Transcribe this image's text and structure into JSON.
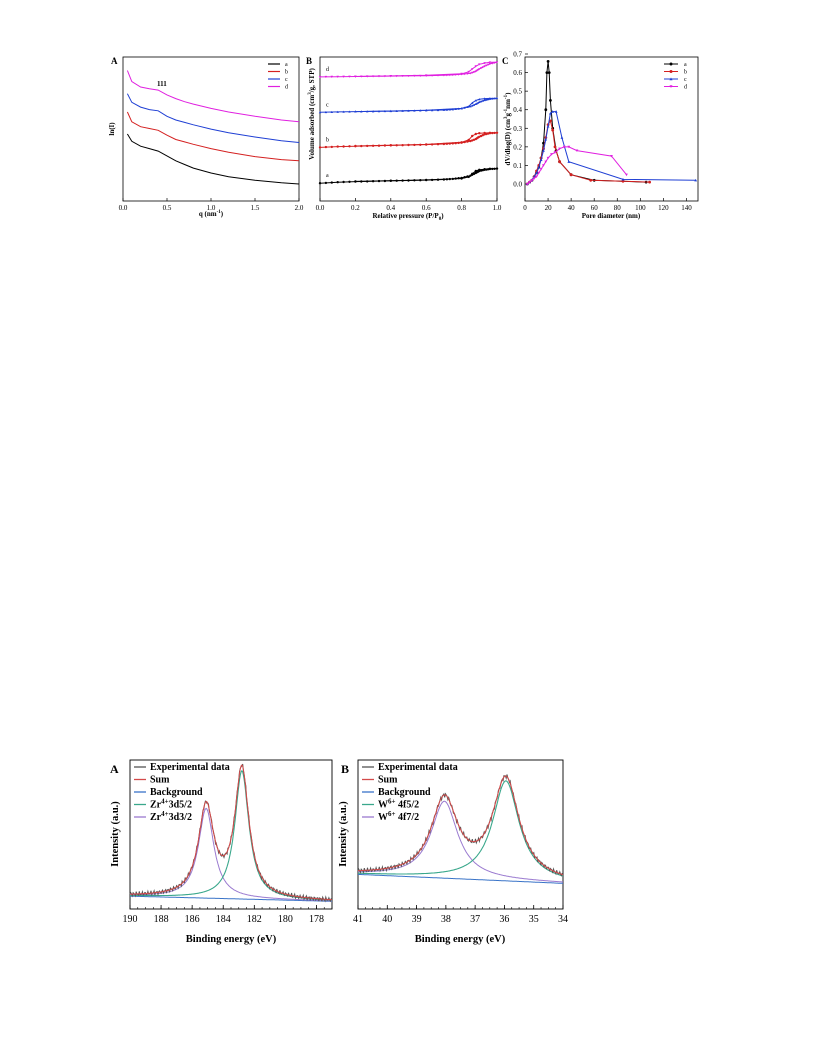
{
  "colors": {
    "a": "#000000",
    "b": "#d42020",
    "c": "#1f3fd4",
    "d": "#e020e0"
  },
  "chart_data": [
    {
      "panel": "A",
      "type": "line",
      "xlabel": "q (nm",
      "xlabel_sup": "-1",
      "xlabel_end": ")",
      "ylabel": "ln(I)",
      "xlim": [
        0,
        2.0
      ],
      "xticks": [
        "0.0",
        "0.5",
        "1.0",
        "1.5",
        "2.0"
      ],
      "annotation": "111",
      "series": [
        {
          "name": "a",
          "x": [
            0.05,
            0.1,
            0.2,
            0.3,
            0.4,
            0.5,
            0.6,
            0.7,
            0.8,
            1.0,
            1.2,
            1.5,
            1.8,
            2.0
          ],
          "y": [
            4.1,
            3.5,
            3.1,
            2.9,
            2.7,
            2.3,
            1.9,
            1.6,
            1.3,
            0.9,
            0.6,
            0.3,
            0.1,
            0.0
          ]
        },
        {
          "name": "b",
          "x": [
            0.05,
            0.1,
            0.2,
            0.3,
            0.4,
            0.5,
            0.6,
            0.7,
            0.8,
            1.0,
            1.2,
            1.5,
            1.8,
            2.0
          ],
          "y": [
            5.9,
            5.1,
            4.7,
            4.55,
            4.4,
            4.0,
            3.65,
            3.45,
            3.25,
            2.9,
            2.6,
            2.25,
            2.0,
            1.9
          ]
        },
        {
          "name": "c",
          "x": [
            0.05,
            0.1,
            0.2,
            0.3,
            0.4,
            0.5,
            0.6,
            0.7,
            0.8,
            1.0,
            1.2,
            1.5,
            1.8,
            2.0
          ],
          "y": [
            7.4,
            6.7,
            6.3,
            6.1,
            6.0,
            5.55,
            5.25,
            5.05,
            4.85,
            4.5,
            4.2,
            3.85,
            3.55,
            3.4
          ]
        },
        {
          "name": "d",
          "x": [
            0.05,
            0.1,
            0.2,
            0.3,
            0.4,
            0.5,
            0.6,
            0.7,
            0.8,
            1.0,
            1.2,
            1.5,
            1.8,
            2.0
          ],
          "y": [
            9.3,
            8.4,
            7.95,
            7.8,
            7.7,
            7.3,
            7.0,
            6.75,
            6.55,
            6.2,
            5.9,
            5.55,
            5.25,
            5.1
          ]
        }
      ]
    },
    {
      "panel": "B",
      "type": "line",
      "xlabel": "Relative pressure (P/P",
      "xlabel_sub": "0",
      "xlabel_end": ")",
      "ylabel": "Volume adsorbed (cm",
      "ylabel_sup": "3",
      "ylabel_end": "/g, STP)",
      "xlim": [
        0,
        1.0
      ],
      "xticks": [
        "0.0",
        "0.2",
        "0.4",
        "0.6",
        "0.8",
        "1.0"
      ],
      "series": [
        {
          "name": "a",
          "x": [
            0.0,
            0.1,
            0.2,
            0.3,
            0.4,
            0.5,
            0.6,
            0.7,
            0.75,
            0.8,
            0.85,
            0.88,
            0.9,
            0.93,
            0.96,
            1.0
          ],
          "y": [
            0.2,
            0.45,
            0.6,
            0.7,
            0.8,
            0.9,
            1.0,
            1.15,
            1.3,
            1.55,
            2.1,
            2.8,
            3.3,
            3.6,
            3.8,
            3.9
          ],
          "desorption_x": [
            1.0,
            0.96,
            0.93,
            0.9,
            0.88,
            0.86,
            0.84,
            0.8,
            0.6,
            0.4,
            0.2
          ],
          "desorption_y": [
            3.9,
            3.85,
            3.75,
            3.6,
            3.3,
            2.6,
            1.8,
            1.4,
            1.05,
            0.85,
            0.65
          ]
        },
        {
          "name": "b",
          "x": [
            0.0,
            0.1,
            0.2,
            0.3,
            0.4,
            0.5,
            0.6,
            0.7,
            0.75,
            0.8,
            0.85,
            0.88,
            0.9,
            0.93,
            0.96,
            1.0
          ],
          "y": [
            9.3,
            9.5,
            9.6,
            9.7,
            9.8,
            9.9,
            10.0,
            10.15,
            10.3,
            10.5,
            10.9,
            11.4,
            12.0,
            12.6,
            12.9,
            13.0
          ],
          "desorption_x": [
            1.0,
            0.96,
            0.93,
            0.9,
            0.88,
            0.86,
            0.84,
            0.8,
            0.6,
            0.4,
            0.2
          ],
          "desorption_y": [
            13.0,
            13.0,
            12.95,
            12.9,
            12.7,
            12.2,
            11.2,
            10.6,
            10.05,
            9.85,
            9.65
          ]
        },
        {
          "name": "c",
          "x": [
            0.0,
            0.1,
            0.2,
            0.3,
            0.4,
            0.5,
            0.6,
            0.7,
            0.75,
            0.8,
            0.85,
            0.88,
            0.9,
            0.93,
            0.96,
            1.0
          ],
          "y": [
            18.2,
            18.3,
            18.4,
            18.45,
            18.5,
            18.6,
            18.7,
            18.8,
            18.95,
            19.2,
            19.7,
            20.3,
            20.8,
            21.3,
            21.6,
            21.8
          ],
          "desorption_x": [
            1.0,
            0.96,
            0.93,
            0.9,
            0.88,
            0.86,
            0.84,
            0.8,
            0.6,
            0.4,
            0.2
          ],
          "desorption_y": [
            21.8,
            21.75,
            21.7,
            21.5,
            21.2,
            20.6,
            19.7,
            19.2,
            18.75,
            18.55,
            18.4
          ]
        },
        {
          "name": "d",
          "x": [
            0.0,
            0.1,
            0.2,
            0.3,
            0.4,
            0.5,
            0.6,
            0.7,
            0.75,
            0.8,
            0.85,
            0.88,
            0.9,
            0.93,
            0.96,
            1.0
          ],
          "y": [
            27.2,
            27.25,
            27.3,
            27.35,
            27.4,
            27.45,
            27.5,
            27.6,
            27.7,
            27.85,
            28.1,
            28.6,
            29.2,
            29.9,
            30.5,
            30.9
          ],
          "desorption_x": [
            1.0,
            0.96,
            0.93,
            0.9,
            0.88,
            0.86,
            0.84,
            0.8,
            0.6,
            0.4,
            0.2
          ],
          "desorption_y": [
            30.9,
            30.9,
            30.7,
            30.4,
            29.9,
            29.2,
            28.5,
            28.0,
            27.6,
            27.45,
            27.3
          ]
        }
      ]
    },
    {
      "panel": "C",
      "type": "line",
      "xlabel": "Pore diameter (nm)",
      "ylabel": "dV/dlog(D) (cm",
      "ylabel_sup1": "3",
      "ylabel_mid": "g",
      "ylabel_sup2": "-1",
      "ylabel_mid2": "nm",
      "ylabel_sup3": "-1",
      "ylabel_end": ")",
      "xlim": [
        0,
        150
      ],
      "ylim": [
        0,
        0.7
      ],
      "xticks": [
        "0",
        "20",
        "40",
        "60",
        "80",
        "100",
        "120",
        "140"
      ],
      "yticks": [
        "0.0",
        "0.1",
        "0.2",
        "0.3",
        "0.4",
        "0.5",
        "0.6",
        "0.7"
      ],
      "series": [
        {
          "name": "a",
          "x": [
            2,
            4,
            6,
            8,
            10,
            12,
            14,
            16,
            18,
            19,
            20,
            21,
            22,
            24,
            27,
            30,
            40,
            60,
            105
          ],
          "y": [
            0.0,
            0.01,
            0.02,
            0.04,
            0.06,
            0.09,
            0.14,
            0.22,
            0.4,
            0.6,
            0.66,
            0.6,
            0.45,
            0.3,
            0.18,
            0.12,
            0.05,
            0.02,
            0.01
          ]
        },
        {
          "name": "b",
          "x": [
            2,
            4,
            6,
            8,
            10,
            12,
            14,
            16,
            18,
            20,
            22,
            24,
            26,
            30,
            40,
            57,
            85,
            108
          ],
          "y": [
            0.0,
            0.01,
            0.02,
            0.04,
            0.07,
            0.1,
            0.14,
            0.19,
            0.25,
            0.32,
            0.34,
            0.29,
            0.2,
            0.12,
            0.05,
            0.02,
            0.015,
            0.01
          ]
        },
        {
          "name": "c",
          "x": [
            2,
            4,
            6,
            8,
            10,
            12,
            14,
            16,
            18,
            20,
            22,
            24,
            27,
            32,
            38,
            85,
            148
          ],
          "y": [
            0.0,
            0.01,
            0.02,
            0.04,
            0.06,
            0.09,
            0.13,
            0.18,
            0.24,
            0.31,
            0.38,
            0.39,
            0.39,
            0.25,
            0.12,
            0.025,
            0.02
          ]
        },
        {
          "name": "d",
          "x": [
            2,
            4,
            6,
            8,
            10,
            12,
            14,
            16,
            18,
            20,
            23,
            26,
            30,
            34,
            38,
            45,
            75,
            88
          ],
          "y": [
            0.0,
            0.01,
            0.02,
            0.03,
            0.04,
            0.06,
            0.08,
            0.1,
            0.12,
            0.14,
            0.16,
            0.17,
            0.19,
            0.2,
            0.2,
            0.18,
            0.15,
            0.05
          ]
        }
      ]
    },
    {
      "panel": "A",
      "type": "line",
      "xlabel": "Binding energy (eV)",
      "ylabel": "Intensity (a.u.)",
      "xlim": [
        190,
        177
      ],
      "xticks": [
        "190",
        "188",
        "186",
        "184",
        "182",
        "180",
        "178"
      ],
      "legend": [
        {
          "label": "Experimental data",
          "color": "#555555"
        },
        {
          "label": "Sum",
          "color": "#d44a4a"
        },
        {
          "label": "Background",
          "color": "#3a74c8"
        },
        {
          "label": "Zr",
          "sup": "4+",
          "rest": "3d5/2",
          "color": "#3aa88c"
        },
        {
          "label": "Zr",
          "sup": "4+",
          "rest": "3d3/2",
          "color": "#9a7ad0"
        }
      ],
      "background": {
        "x": [
          190,
          177
        ],
        "y": [
          0.1,
          0.06
        ]
      },
      "peaks": [
        {
          "name": "Zr4+3d5/2",
          "center": 182.8,
          "height": 1.0,
          "width": 0.55
        },
        {
          "name": "Zr4+3d3/2",
          "center": 185.1,
          "height": 0.7,
          "width": 0.6
        }
      ]
    },
    {
      "panel": "B",
      "type": "line",
      "xlabel": "Binding energy (eV)",
      "ylabel": "Intensity (a.u.)",
      "xlim": [
        41,
        34
      ],
      "xticks": [
        "41",
        "40",
        "39",
        "38",
        "37",
        "36",
        "35",
        "34"
      ],
      "legend": [
        {
          "label": "Experimental data",
          "color": "#555555"
        },
        {
          "label": "Sum",
          "color": "#d44a4a"
        },
        {
          "label": "Background",
          "color": "#3a74c8"
        },
        {
          "label": "W",
          "sup": "6+",
          "rest": " 4f5/2",
          "color": "#3aa88c"
        },
        {
          "label": "W",
          "sup": "6+",
          "rest": " 4f7/2",
          "color": "#9a7ad0"
        }
      ],
      "background": {
        "x": [
          41,
          34
        ],
        "y": [
          0.27,
          0.2
        ]
      },
      "peaks": [
        {
          "name": "W6+ 4f5/2",
          "center": 35.95,
          "height": 0.78,
          "width": 0.55
        },
        {
          "name": "W6+ 4f7/2",
          "center": 38.05,
          "height": 0.6,
          "width": 0.55
        }
      ]
    }
  ]
}
